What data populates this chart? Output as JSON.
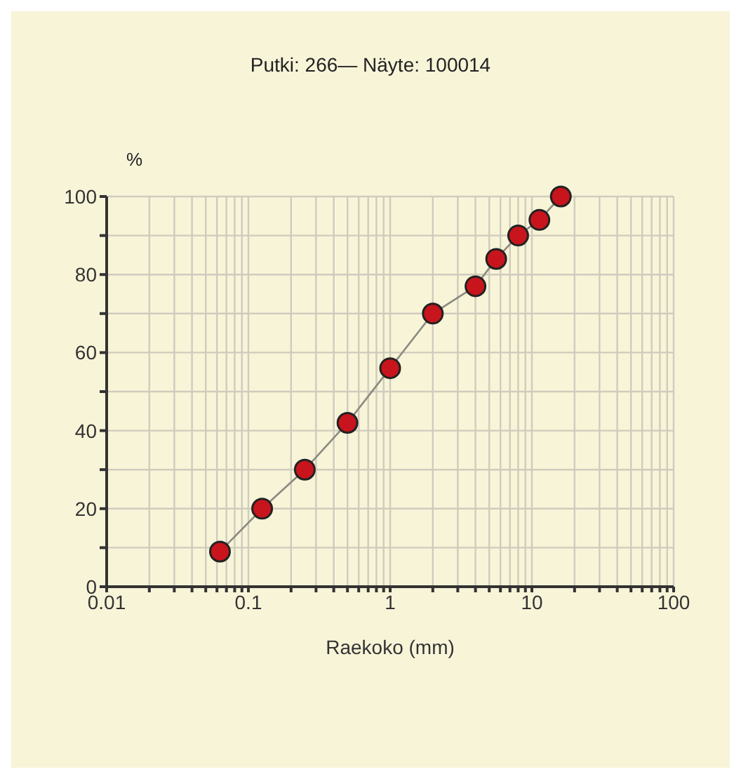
{
  "chart_data": {
    "type": "line",
    "title": "Putki: 266— Näyte: 100014",
    "xlabel": "Raekoko (mm)",
    "ylabel": "%",
    "x": [
      0.063,
      0.125,
      0.25,
      0.5,
      1,
      2,
      4,
      5.6,
      8,
      11.3,
      16
    ],
    "series": [
      {
        "color": "#c8141c",
        "values": [
          9,
          20,
          30,
          42,
          56,
          70,
          77,
          84,
          90,
          94,
          100
        ]
      }
    ],
    "log": "x",
    "xlim": [
      0.01,
      100
    ],
    "xticks": [
      0.01,
      {
        "value": 0.02,
        "label": null
      },
      {
        "value": 0.03,
        "label": null
      },
      {
        "value": 0.04,
        "label": null
      },
      {
        "value": 0.05,
        "label": null
      },
      {
        "value": 0.06,
        "label": null
      },
      {
        "value": 0.07,
        "label": null
      },
      {
        "value": 0.08,
        "label": null
      },
      {
        "value": 0.09,
        "label": null
      },
      0.1,
      {
        "value": 0.2,
        "label": null
      },
      {
        "value": 0.3,
        "label": null
      },
      {
        "value": 0.4,
        "label": null
      },
      {
        "value": 0.5,
        "label": null
      },
      {
        "value": 0.6,
        "label": null
      },
      {
        "value": 0.7,
        "label": null
      },
      {
        "value": 0.8,
        "label": null
      },
      {
        "value": 0.9,
        "label": null
      },
      1,
      {
        "value": 2,
        "label": null
      },
      {
        "value": 3,
        "label": null
      },
      {
        "value": 4,
        "label": null
      },
      {
        "value": 5,
        "label": null
      },
      {
        "value": 6,
        "label": null
      },
      {
        "value": 7,
        "label": null
      },
      {
        "value": 8,
        "label": null
      },
      {
        "value": 9,
        "label": null
      },
      10,
      {
        "value": 20,
        "label": null
      },
      {
        "value": 30,
        "label": null
      },
      {
        "value": 40,
        "label": null
      },
      {
        "value": 50,
        "label": null
      },
      {
        "value": 60,
        "label": null
      },
      {
        "value": 70,
        "label": null
      },
      {
        "value": 80,
        "label": null
      },
      {
        "value": 90,
        "label": null
      },
      100
    ],
    "ylim": [
      0,
      100
    ],
    "yticks": [
      0,
      {
        "value": 10,
        "label": null
      },
      20,
      {
        "value": 30,
        "label": null
      },
      40,
      {
        "value": 50,
        "label": null
      },
      60,
      {
        "value": 70,
        "label": null
      },
      80,
      {
        "value": 90,
        "label": null
      },
      100
    ],
    "grid": true,
    "marker": "circle",
    "line_style": "solid",
    "legend": false
  }
}
